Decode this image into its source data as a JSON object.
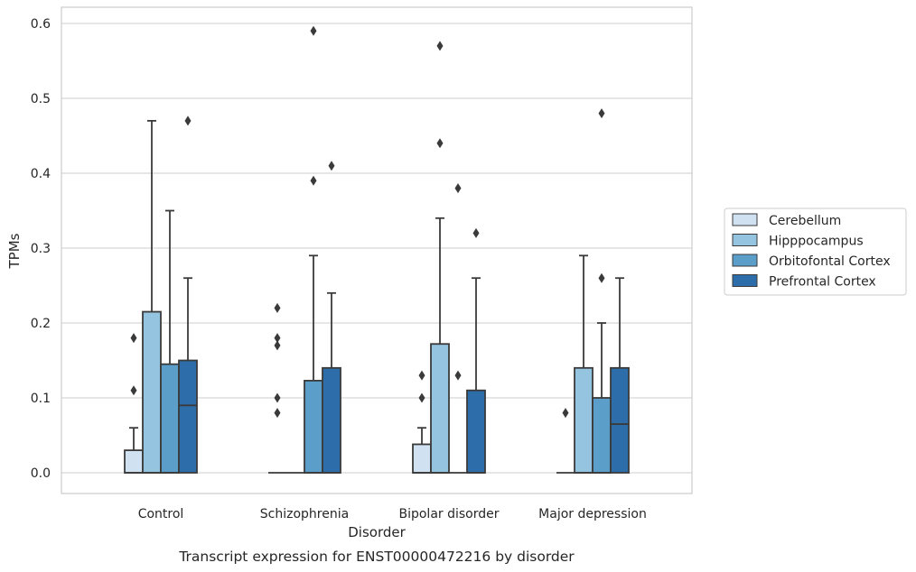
{
  "chart_data": {
    "type": "boxplot",
    "caption": "Transcript expression for ENST00000472216 by disorder",
    "xlabel": "Disorder",
    "ylabel": "TPMs",
    "ylim": [
      -0.028,
      0.62
    ],
    "yticks": [
      0.0,
      0.1,
      0.2,
      0.3,
      0.4,
      0.5,
      0.6
    ],
    "ytick_labels": [
      "0.0",
      "0.1",
      "0.2",
      "0.3",
      "0.4",
      "0.5",
      "0.6"
    ],
    "grid": "horizontal",
    "legend_position": "right",
    "categories": [
      "Control",
      "Schizophrenia",
      "Bipolar disorder",
      "Major depression"
    ],
    "series": [
      {
        "name": "Cerebellum",
        "color": "#d0e1f2",
        "boxes": [
          {
            "q1": 0.0,
            "median": 0.0,
            "q3": 0.03,
            "whisker_low": 0.0,
            "whisker_high": 0.06,
            "outliers": [
              0.11,
              0.18
            ]
          },
          {
            "q1": 0.0,
            "median": 0.0,
            "q3": 0.0,
            "whisker_low": 0.0,
            "whisker_high": 0.0,
            "outliers": [
              0.08,
              0.1,
              0.17,
              0.18,
              0.22
            ]
          },
          {
            "q1": 0.0,
            "median": 0.0,
            "q3": 0.038,
            "whisker_low": 0.0,
            "whisker_high": 0.06,
            "outliers": [
              0.1,
              0.13
            ]
          },
          {
            "q1": 0.0,
            "median": 0.0,
            "q3": 0.0,
            "whisker_low": 0.0,
            "whisker_high": 0.0,
            "outliers": [
              0.08
            ]
          }
        ]
      },
      {
        "name": "Hipppocampus",
        "color": "#94c4df",
        "boxes": [
          {
            "q1": 0.0,
            "median": 0.0,
            "q3": 0.215,
            "whisker_low": 0.0,
            "whisker_high": 0.47,
            "outliers": []
          },
          {
            "q1": 0.0,
            "median": 0.0,
            "q3": 0.0,
            "whisker_low": 0.0,
            "whisker_high": 0.0,
            "outliers": []
          },
          {
            "q1": 0.0,
            "median": 0.0,
            "q3": 0.172,
            "whisker_low": 0.0,
            "whisker_high": 0.34,
            "outliers": [
              0.44,
              0.57
            ]
          },
          {
            "q1": 0.0,
            "median": 0.0,
            "q3": 0.14,
            "whisker_low": 0.0,
            "whisker_high": 0.29,
            "outliers": []
          }
        ]
      },
      {
        "name": "Orbitofontal Cortex",
        "color": "#5b9ec9",
        "boxes": [
          {
            "q1": 0.0,
            "median": 0.0,
            "q3": 0.145,
            "whisker_low": 0.0,
            "whisker_high": 0.35,
            "outliers": []
          },
          {
            "q1": 0.0,
            "median": 0.0,
            "q3": 0.123,
            "whisker_low": 0.0,
            "whisker_high": 0.29,
            "outliers": [
              0.39,
              0.59
            ]
          },
          {
            "q1": 0.0,
            "median": 0.0,
            "q3": 0.0,
            "whisker_low": 0.0,
            "whisker_high": 0.0,
            "outliers": [
              0.13,
              0.38
            ]
          },
          {
            "q1": 0.0,
            "median": 0.0,
            "q3": 0.1,
            "whisker_low": 0.0,
            "whisker_high": 0.2,
            "outliers": [
              0.26,
              0.48
            ]
          }
        ]
      },
      {
        "name": "Prefrontal Cortex",
        "color": "#2d6eaa",
        "boxes": [
          {
            "q1": 0.0,
            "median": 0.09,
            "q3": 0.15,
            "whisker_low": 0.0,
            "whisker_high": 0.26,
            "outliers": [
              0.47
            ]
          },
          {
            "q1": 0.0,
            "median": 0.0,
            "q3": 0.14,
            "whisker_low": 0.0,
            "whisker_high": 0.24,
            "outliers": [
              0.41
            ]
          },
          {
            "q1": 0.0,
            "median": 0.0,
            "q3": 0.11,
            "whisker_low": 0.0,
            "whisker_high": 0.26,
            "outliers": [
              0.32
            ]
          },
          {
            "q1": 0.0,
            "median": 0.065,
            "q3": 0.14,
            "whisker_low": 0.0,
            "whisker_high": 0.26,
            "outliers": []
          }
        ]
      }
    ]
  }
}
